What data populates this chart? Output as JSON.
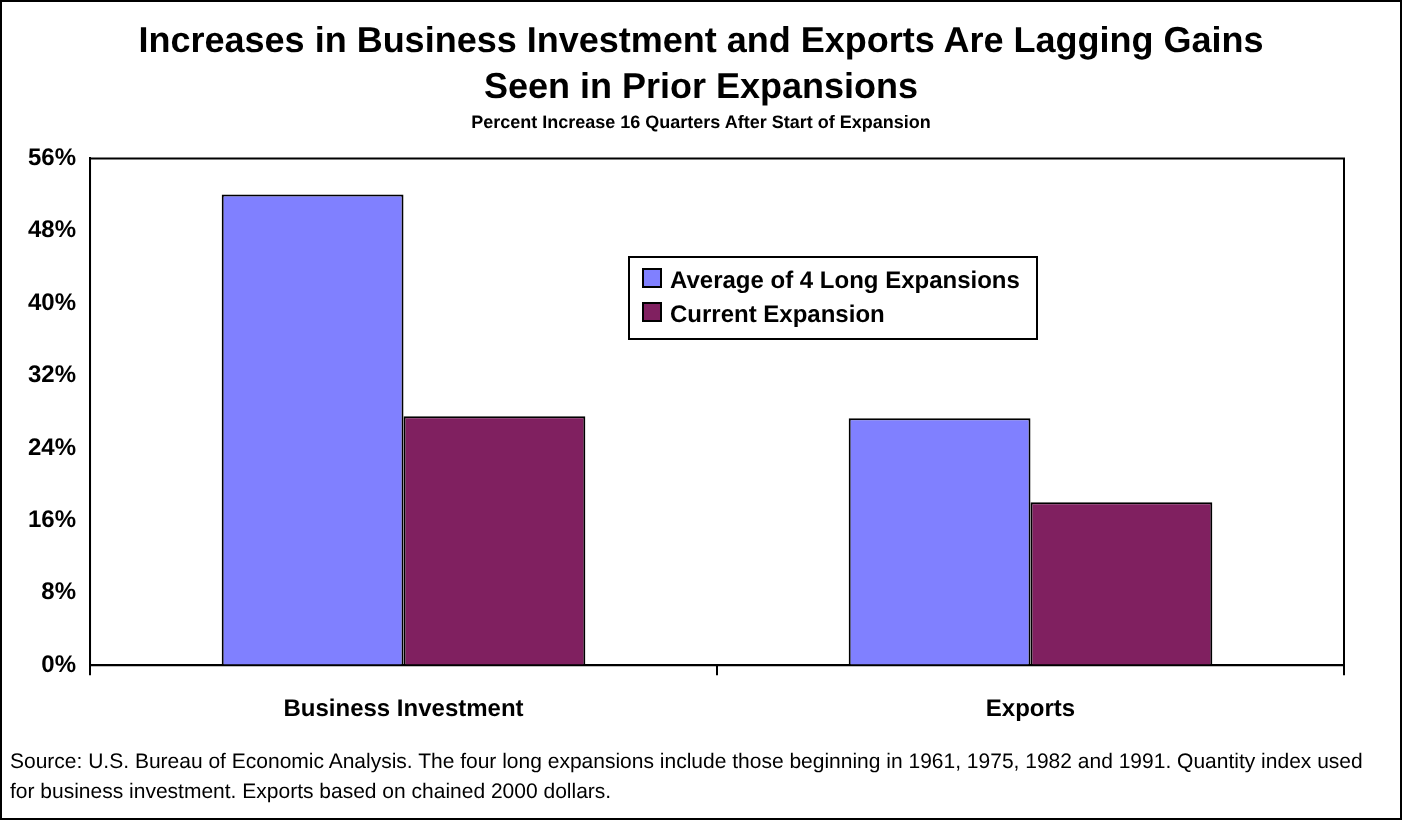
{
  "chart_data": {
    "type": "bar",
    "title": "Increases in Business Investment and Exports Are Lagging Gains Seen in Prior Expansions",
    "subtitle": "Percent Increase 16 Quarters After Start of Expansion",
    "categories": [
      "Business Investment",
      "Exports"
    ],
    "series": [
      {
        "name": "Average of 4 Long Expansions",
        "color": "#8080ff",
        "values": [
          52,
          27.3
        ]
      },
      {
        "name": "Current Expansion",
        "color": "#802060",
        "values": [
          27.5,
          18
        ]
      }
    ],
    "ylim": [
      0,
      56
    ],
    "yticks": [
      {
        "value": 0,
        "label": "0%"
      },
      {
        "value": 8,
        "label": "8%"
      },
      {
        "value": 16,
        "label": "16%"
      },
      {
        "value": 24,
        "label": "24%"
      },
      {
        "value": 32,
        "label": "32%"
      },
      {
        "value": 40,
        "label": "40%"
      },
      {
        "value": 48,
        "label": "48%"
      },
      {
        "value": 56,
        "label": "56%"
      }
    ],
    "grid": false,
    "legend": "top right",
    "annotations": [
      "Source: U.S. Bureau of Economic Analysis. The four long expansions include those beginning in 1961, 1975, 1982 and 1991. Quantity index used for business investment. Exports based on chained 2000 dollars."
    ]
  }
}
